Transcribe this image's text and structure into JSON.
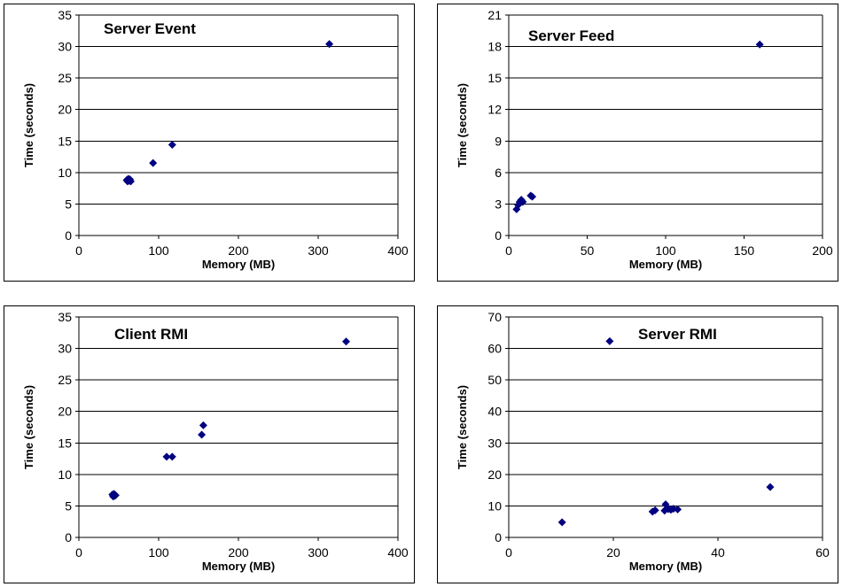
{
  "chart_data": [
    {
      "type": "scatter",
      "title": "Server Event",
      "xlabel": "Memory (MB)",
      "ylabel": "Time (seconds)",
      "xlim": [
        0,
        400
      ],
      "ylim": [
        0,
        35
      ],
      "xticks": [
        0,
        100,
        200,
        300,
        400
      ],
      "yticks": [
        0,
        5,
        10,
        15,
        20,
        25,
        30,
        35
      ],
      "grid": "horizontal",
      "points": [
        {
          "x": 60,
          "y": 8.8
        },
        {
          "x": 61,
          "y": 8.6
        },
        {
          "x": 62,
          "y": 9.0
        },
        {
          "x": 63,
          "y": 8.7
        },
        {
          "x": 64,
          "y": 8.9
        },
        {
          "x": 65,
          "y": 8.6
        },
        {
          "x": 93,
          "y": 11.5
        },
        {
          "x": 117,
          "y": 14.4
        },
        {
          "x": 314,
          "y": 30.4
        }
      ]
    },
    {
      "type": "scatter",
      "title": "Server Feed",
      "xlabel": "Memory (MB)",
      "ylabel": "Time (seconds)",
      "xlim": [
        0,
        200
      ],
      "ylim": [
        0,
        21
      ],
      "xticks": [
        0,
        50,
        100,
        150,
        200
      ],
      "yticks": [
        0,
        3,
        6,
        9,
        12,
        15,
        18,
        21
      ],
      "grid": "horizontal",
      "points": [
        {
          "x": 5,
          "y": 2.5
        },
        {
          "x": 6,
          "y": 2.9
        },
        {
          "x": 7,
          "y": 3.2
        },
        {
          "x": 8,
          "y": 3.4
        },
        {
          "x": 9,
          "y": 3.2
        },
        {
          "x": 14,
          "y": 3.8
        },
        {
          "x": 15,
          "y": 3.7
        },
        {
          "x": 160,
          "y": 18.2
        }
      ]
    },
    {
      "type": "scatter",
      "title": "Client RMI",
      "xlabel": "Memory (MB)",
      "ylabel": "Time (seconds)",
      "xlim": [
        0,
        400
      ],
      "ylim": [
        0,
        35
      ],
      "xticks": [
        0,
        100,
        200,
        300,
        400
      ],
      "yticks": [
        0,
        5,
        10,
        15,
        20,
        25,
        30,
        35
      ],
      "grid": "horizontal",
      "points": [
        {
          "x": 42,
          "y": 6.8
        },
        {
          "x": 43,
          "y": 6.5
        },
        {
          "x": 44,
          "y": 6.9
        },
        {
          "x": 45,
          "y": 6.6
        },
        {
          "x": 46,
          "y": 6.7
        },
        {
          "x": 110,
          "y": 12.8
        },
        {
          "x": 117,
          "y": 12.8
        },
        {
          "x": 154,
          "y": 16.3
        },
        {
          "x": 156,
          "y": 17.8
        },
        {
          "x": 335,
          "y": 31.1
        }
      ]
    },
    {
      "type": "scatter",
      "title": "Server RMI",
      "xlabel": "Memory (MB)",
      "ylabel": "Time (seconds)",
      "xlim": [
        0,
        60
      ],
      "ylim": [
        0,
        70
      ],
      "xticks": [
        0,
        20,
        40,
        60
      ],
      "yticks": [
        0,
        10,
        20,
        30,
        40,
        50,
        60,
        70
      ],
      "grid": "horizontal",
      "points": [
        {
          "x": 10.2,
          "y": 4.8
        },
        {
          "x": 19.3,
          "y": 62.3
        },
        {
          "x": 27.5,
          "y": 8.2
        },
        {
          "x": 28.0,
          "y": 8.6
        },
        {
          "x": 29.8,
          "y": 8.5
        },
        {
          "x": 30.0,
          "y": 10.5
        },
        {
          "x": 30.5,
          "y": 9.0
        },
        {
          "x": 31.0,
          "y": 8.8
        },
        {
          "x": 31.5,
          "y": 9.1
        },
        {
          "x": 32.3,
          "y": 8.9
        },
        {
          "x": 50.0,
          "y": 16.0
        }
      ]
    }
  ],
  "style": {
    "marker_color": "#000080",
    "grid_color": "#000000"
  }
}
